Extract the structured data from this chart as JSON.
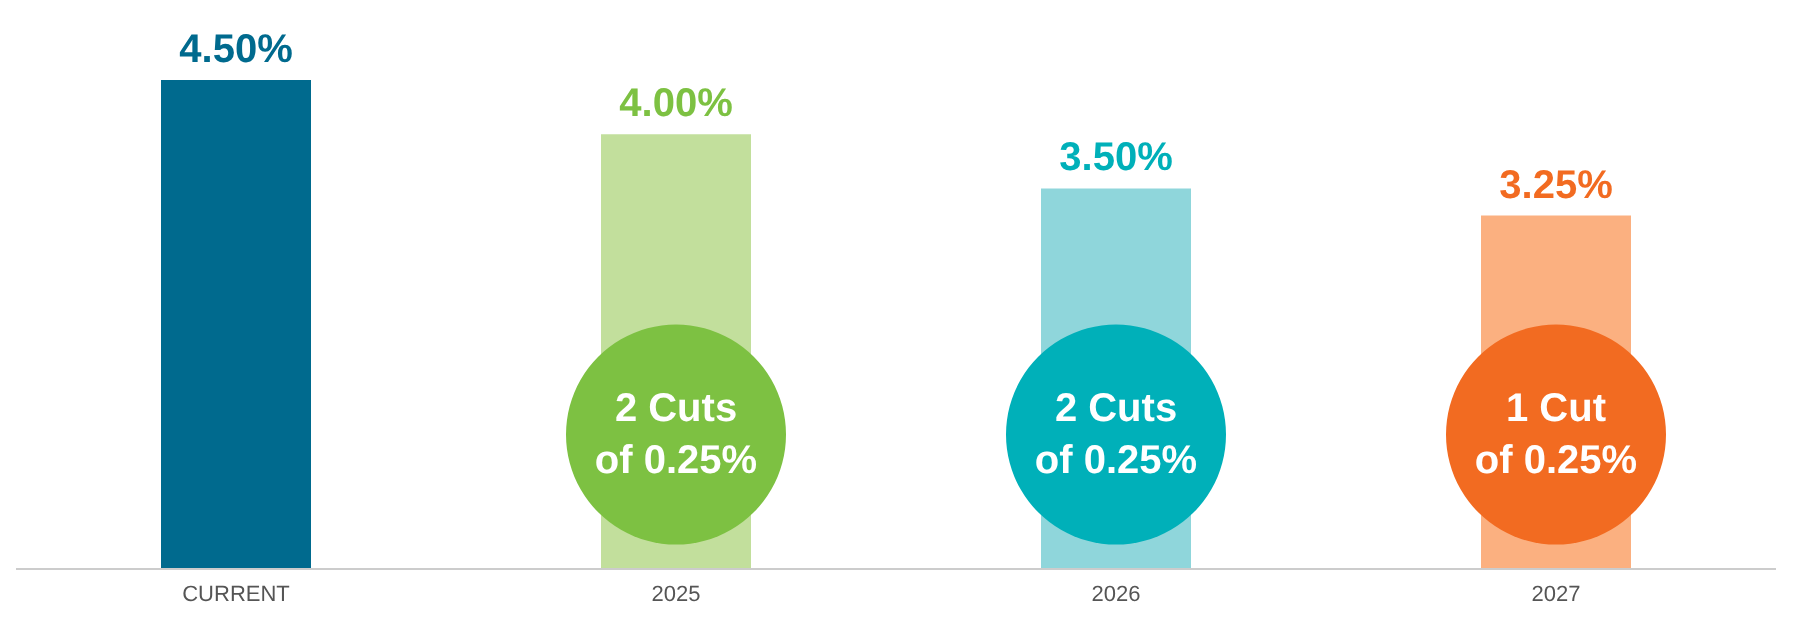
{
  "chart_data": {
    "type": "bar",
    "categories": [
      "CURRENT",
      "2025",
      "2026",
      "2027"
    ],
    "series": [
      {
        "values": [
          4.5,
          4.0,
          3.5,
          3.25
        ],
        "colors": [
          "#006a8e",
          "#c2df9c",
          "#8fd6db",
          "#fbb080"
        ],
        "value_labels": [
          "4.50%",
          "4.00%",
          "3.50%",
          "3.25%"
        ]
      },
      {
        "type": "scatter",
        "values": [
          null,
          1.23,
          1.23,
          1.23
        ],
        "colors": [
          null,
          "#7dc142",
          "#00b0b9",
          "#f26b21"
        ],
        "value_labels": [
          null,
          "2 Cuts\nof 0.25%",
          "2 Cuts\nof 0.25%",
          "1 Cut\nof 0.25%"
        ]
      }
    ],
    "grid": false,
    "tick_labels": "x"
  }
}
